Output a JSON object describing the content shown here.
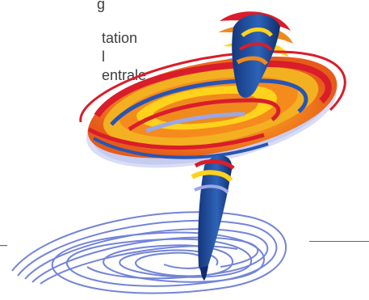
{
  "text": {
    "line1": "g",
    "line2": "tation",
    "line3": "l",
    "line4": "entrale"
  },
  "icons": {
    "illustration": "spinning-top-icon"
  },
  "colors": {
    "text": "#3d3d3d",
    "blue_dark": "#1b3f8f",
    "blue_mid": "#2f66b8",
    "red": "#d91d2a",
    "orange": "#f08a1c",
    "yellow": "#ffd21c",
    "lavender": "#9aa7e8",
    "spiral": "#7384d8"
  }
}
